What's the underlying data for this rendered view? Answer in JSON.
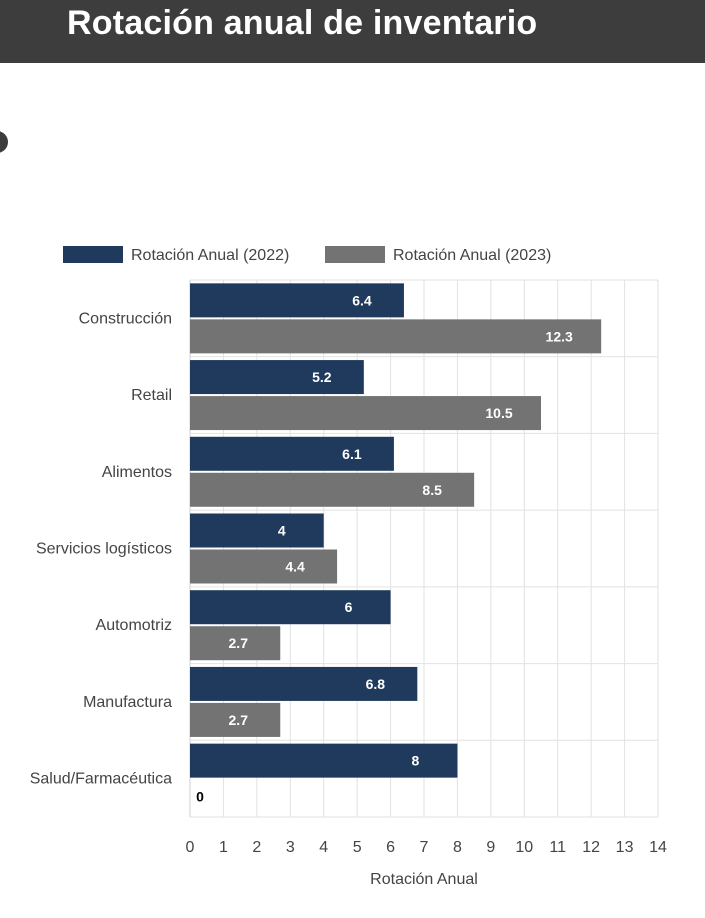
{
  "header": {
    "title": "Rotación anual de inventario"
  },
  "chart_data": {
    "type": "bar",
    "orientation": "horizontal",
    "title": "",
    "xlabel": "Rotación Anual",
    "ylabel": "",
    "xlim": [
      0,
      14
    ],
    "x_ticks": [
      "0",
      "1",
      "2",
      "3",
      "4",
      "5",
      "6",
      "7",
      "8",
      "9",
      "10",
      "11",
      "12",
      "13",
      "14"
    ],
    "grid": true,
    "legend_position": "top-left",
    "categories": [
      "Construcción",
      "Retail",
      "Alimentos",
      "Servicios logísticos",
      "Automotriz",
      "Manufactura",
      "Salud/Farmacéutica"
    ],
    "series": [
      {
        "name": "Rotación Anual (2022)",
        "color": "#1f3a5c",
        "values": [
          6.4,
          5.2,
          6.1,
          4,
          6,
          6.8,
          8
        ],
        "labels": [
          "6.4",
          "5.2",
          "6.1",
          "4",
          "6",
          "6.8",
          "8"
        ]
      },
      {
        "name": "Rotación Anual (2023)",
        "color": "#737373",
        "values": [
          12.3,
          10.5,
          8.5,
          4.4,
          2.7,
          2.7,
          0
        ],
        "labels": [
          "12.3",
          "10.5",
          "8.5",
          "4.4",
          "2.7",
          "2.7",
          "0"
        ]
      }
    ]
  }
}
